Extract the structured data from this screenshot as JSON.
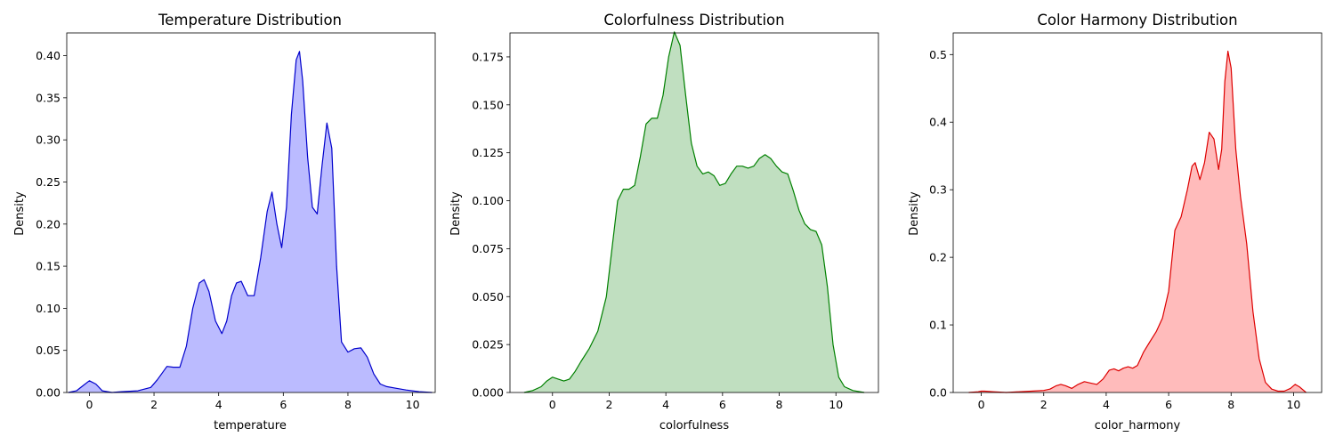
{
  "chart_data": [
    {
      "type": "area",
      "title": "Temperature Distribution",
      "xlabel": "temperature",
      "ylabel": "Density",
      "xlim": [
        -0.7,
        10.7
      ],
      "ylim": [
        0,
        0.427
      ],
      "xticks": [
        "0",
        "2",
        "4",
        "6",
        "8",
        "10"
      ],
      "yticks": [
        "0.00",
        "0.05",
        "0.10",
        "0.15",
        "0.20",
        "0.25",
        "0.30",
        "0.35",
        "0.40"
      ],
      "color": "#0000cc",
      "fill": "#bbbbff",
      "series": [
        {
          "x": [
            -0.65,
            -0.4,
            -0.2,
            0.0,
            0.2,
            0.4,
            0.7,
            1.0,
            1.5,
            1.9,
            2.1,
            2.4,
            2.6,
            2.8,
            3.0,
            3.2,
            3.4,
            3.55,
            3.7,
            3.9,
            4.1,
            4.25,
            4.4,
            4.55,
            4.7,
            4.9,
            5.1,
            5.3,
            5.5,
            5.65,
            5.8,
            5.95,
            6.1,
            6.25,
            6.4,
            6.5,
            6.6,
            6.75,
            6.9,
            7.05,
            7.2,
            7.35,
            7.5,
            7.65,
            7.8,
            8.0,
            8.2,
            8.4,
            8.6,
            8.8,
            9.0,
            9.2,
            9.5,
            9.8,
            10.2,
            10.6
          ],
          "y": [
            0.0,
            0.002,
            0.008,
            0.014,
            0.01,
            0.002,
            0.0,
            0.001,
            0.002,
            0.006,
            0.015,
            0.031,
            0.03,
            0.03,
            0.055,
            0.1,
            0.13,
            0.134,
            0.12,
            0.085,
            0.07,
            0.085,
            0.115,
            0.13,
            0.132,
            0.115,
            0.115,
            0.16,
            0.215,
            0.238,
            0.2,
            0.172,
            0.22,
            0.33,
            0.395,
            0.405,
            0.37,
            0.28,
            0.22,
            0.212,
            0.27,
            0.32,
            0.29,
            0.15,
            0.06,
            0.048,
            0.052,
            0.053,
            0.042,
            0.022,
            0.01,
            0.007,
            0.005,
            0.003,
            0.001,
            0.0
          ]
        }
      ]
    },
    {
      "type": "area",
      "title": "Colorfulness Distribution",
      "xlabel": "colorfulness",
      "ylabel": "Density",
      "xlim": [
        -1.5,
        11.5
      ],
      "ylim": [
        0,
        0.1875
      ],
      "xticks": [
        "0",
        "2",
        "4",
        "6",
        "8",
        "10"
      ],
      "yticks": [
        "0.000",
        "0.025",
        "0.050",
        "0.075",
        "0.100",
        "0.125",
        "0.150",
        "0.175"
      ],
      "color": "#008000",
      "fill": "#c0dfc0",
      "series": [
        {
          "x": [
            -1.0,
            -0.7,
            -0.4,
            -0.2,
            0.0,
            0.2,
            0.4,
            0.6,
            0.8,
            1.0,
            1.3,
            1.6,
            1.9,
            2.1,
            2.3,
            2.5,
            2.7,
            2.9,
            3.1,
            3.3,
            3.5,
            3.7,
            3.9,
            4.1,
            4.3,
            4.5,
            4.7,
            4.9,
            5.1,
            5.3,
            5.5,
            5.7,
            5.9,
            6.1,
            6.3,
            6.5,
            6.7,
            6.9,
            7.1,
            7.3,
            7.5,
            7.7,
            7.9,
            8.1,
            8.3,
            8.5,
            8.7,
            8.9,
            9.1,
            9.3,
            9.5,
            9.7,
            9.9,
            10.1,
            10.3,
            10.6,
            11.0
          ],
          "y": [
            0.0,
            0.001,
            0.003,
            0.006,
            0.008,
            0.007,
            0.006,
            0.007,
            0.011,
            0.016,
            0.023,
            0.032,
            0.05,
            0.075,
            0.1,
            0.106,
            0.106,
            0.108,
            0.123,
            0.14,
            0.143,
            0.143,
            0.155,
            0.175,
            0.188,
            0.181,
            0.155,
            0.13,
            0.118,
            0.114,
            0.115,
            0.113,
            0.108,
            0.109,
            0.114,
            0.118,
            0.118,
            0.117,
            0.118,
            0.122,
            0.124,
            0.122,
            0.118,
            0.115,
            0.114,
            0.105,
            0.095,
            0.088,
            0.085,
            0.084,
            0.077,
            0.055,
            0.025,
            0.008,
            0.003,
            0.001,
            0.0
          ]
        }
      ]
    },
    {
      "type": "area",
      "title": "Color Harmony Distribution",
      "xlabel": "color_harmony",
      "ylabel": "Density",
      "xlim": [
        -0.9,
        10.9
      ],
      "ylim": [
        0,
        0.532
      ],
      "xticks": [
        "0",
        "2",
        "4",
        "6",
        "8",
        "10"
      ],
      "yticks": [
        "0.0",
        "0.1",
        "0.2",
        "0.3",
        "0.4",
        "0.5"
      ],
      "color": "#dd0000",
      "fill": "#ffbbbb",
      "series": [
        {
          "x": [
            -0.4,
            -0.1,
            0.0,
            0.1,
            0.4,
            0.8,
            1.2,
            1.6,
            2.0,
            2.2,
            2.4,
            2.55,
            2.7,
            2.9,
            3.1,
            3.3,
            3.5,
            3.7,
            3.9,
            4.1,
            4.25,
            4.4,
            4.55,
            4.7,
            4.85,
            5.0,
            5.2,
            5.4,
            5.6,
            5.8,
            6.0,
            6.2,
            6.4,
            6.6,
            6.75,
            6.85,
            7.0,
            7.15,
            7.3,
            7.45,
            7.6,
            7.7,
            7.8,
            7.9,
            8.0,
            8.15,
            8.3,
            8.5,
            8.7,
            8.9,
            9.1,
            9.3,
            9.5,
            9.7,
            9.9,
            10.05,
            10.2,
            10.4
          ],
          "y": [
            0.0,
            0.001,
            0.002,
            0.002,
            0.001,
            0.0,
            0.001,
            0.002,
            0.003,
            0.005,
            0.01,
            0.012,
            0.01,
            0.006,
            0.012,
            0.016,
            0.014,
            0.012,
            0.02,
            0.033,
            0.035,
            0.032,
            0.036,
            0.038,
            0.036,
            0.04,
            0.06,
            0.075,
            0.09,
            0.11,
            0.15,
            0.24,
            0.26,
            0.3,
            0.335,
            0.34,
            0.315,
            0.34,
            0.385,
            0.375,
            0.33,
            0.36,
            0.46,
            0.505,
            0.48,
            0.36,
            0.29,
            0.22,
            0.12,
            0.05,
            0.015,
            0.005,
            0.002,
            0.002,
            0.006,
            0.012,
            0.008,
            0.0
          ]
        }
      ]
    }
  ]
}
